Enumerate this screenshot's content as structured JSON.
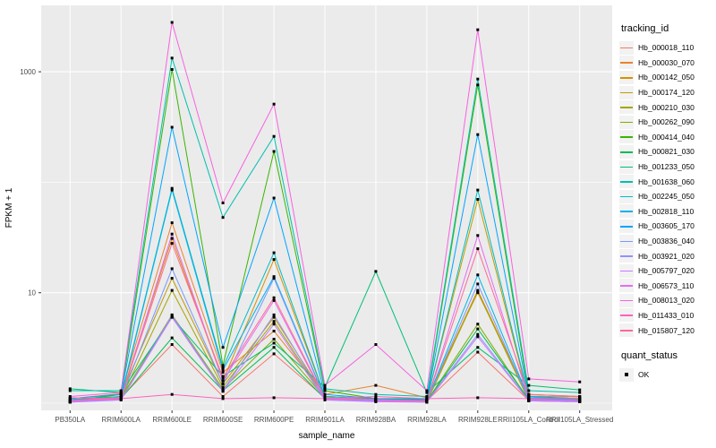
{
  "figure": {
    "x_axis_title": "sample_name",
    "y_axis_title": "FPKM + 1",
    "legends": {
      "tracking": {
        "title": "tracking_id"
      },
      "quant": {
        "title": "quant_status",
        "items": [
          {
            "label": "OK",
            "marker_icon": "black-square-point-icon"
          }
        ]
      }
    },
    "colors": {
      "panel_bg": "#EBEBEB",
      "grid_major": "#FFFFFF",
      "grid_minor": "#FFFFFF",
      "tick_label": "#4D4D4D",
      "axis_title": "#000000",
      "tick_mark": "#333333",
      "point": "#000000",
      "legend_key_bg": "#F2F2F2"
    }
  },
  "chart_data": {
    "type": "line",
    "title": "",
    "xlabel": "sample_name",
    "ylabel": "FPKM + 1",
    "y_scale": "log10",
    "ylim": [
      1,
      4000
    ],
    "y_major_ticks": [
      10,
      1000
    ],
    "y_tick_labels": [
      "10",
      "1000"
    ],
    "y_minor_gridlines": [
      1,
      100
    ],
    "grid": "white-on-gray",
    "legend_position": "right",
    "marker": "small-black-square",
    "categories": [
      "PB350LA",
      "RRIM600LA",
      "RRIM600LE",
      "RRIM600SE",
      "RRIM600PE",
      "RRIM901LA",
      "RRIM928BA",
      "RRIM928LA",
      "RRIM928LE",
      "RRII105LA_Control",
      "RRII105LA_Stressed"
    ],
    "series": [
      {
        "name": "Hb_000018_110",
        "color": "#F8766D",
        "values": [
          1.05,
          1.12,
          3.4,
          1.15,
          2.8,
          1.12,
          1.06,
          1.05,
          2.9,
          1.06,
          1.05
        ]
      },
      {
        "name": "Hb_000030_070",
        "color": "#EA8331",
        "values": [
          1.1,
          1.22,
          43,
          1.9,
          4.5,
          1.2,
          1.45,
          1.12,
          10.0,
          1.16,
          1.14
        ]
      },
      {
        "name": "Hb_000142_050",
        "color": "#D89000",
        "values": [
          1.06,
          1.15,
          31,
          1.6,
          20,
          1.15,
          1.1,
          1.06,
          10.5,
          1.1,
          1.08
        ]
      },
      {
        "name": "Hb_000174_120",
        "color": "#C09B00",
        "values": [
          1.05,
          1.2,
          13.5,
          1.5,
          6.0,
          1.15,
          1.1,
          1.08,
          70,
          1.1,
          1.05
        ]
      },
      {
        "name": "Hb_000210_030",
        "color": "#A3A500",
        "values": [
          1.02,
          1.1,
          10.5,
          1.4,
          5.5,
          1.1,
          1.05,
          1.02,
          10.2,
          1.05,
          1.03
        ]
      },
      {
        "name": "Hb_000262_090",
        "color": "#7CAE00",
        "values": [
          1.03,
          1.12,
          6.3,
          1.35,
          3.8,
          1.12,
          1.06,
          1.04,
          5.2,
          1.06,
          1.04
        ]
      },
      {
        "name": "Hb_000414_040",
        "color": "#39B600",
        "values": [
          1.05,
          1.2,
          1050,
          2.2,
          190,
          1.3,
          1.1,
          1.1,
          760,
          1.2,
          1.15
        ]
      },
      {
        "name": "Hb_000821_030",
        "color": "#00BC51",
        "values": [
          1.04,
          1.1,
          3.9,
          1.3,
          3.2,
          1.1,
          1.05,
          1.04,
          4.7,
          1.08,
          1.05
        ]
      },
      {
        "name": "Hb_001233_050",
        "color": "#00BF74",
        "values": [
          1.35,
          1.25,
          6.0,
          1.75,
          3.5,
          1.4,
          15.6,
          1.25,
          3.2,
          1.45,
          1.32
        ]
      },
      {
        "name": "Hb_001638_060",
        "color": "#00C0AF",
        "values": [
          1.3,
          1.3,
          1330,
          48,
          260,
          1.35,
          1.2,
          1.15,
          860,
          1.3,
          1.25
        ]
      },
      {
        "name": "Hb_002245_050",
        "color": "#00BCC2",
        "values": [
          1.08,
          1.15,
          88,
          2.1,
          23,
          1.15,
          1.1,
          1.06,
          85,
          1.12,
          1.1
        ]
      },
      {
        "name": "Hb_002818_110",
        "color": "#00B3E9",
        "values": [
          1.06,
          1.12,
          85,
          2.0,
          14,
          1.12,
          1.08,
          1.05,
          14.5,
          1.1,
          1.07
        ]
      },
      {
        "name": "Hb_003605_170",
        "color": "#00A5FF",
        "values": [
          1.1,
          1.2,
          315,
          3.2,
          72,
          1.2,
          1.1,
          1.08,
          270,
          1.15,
          1.1
        ]
      },
      {
        "name": "Hb_003836_040",
        "color": "#7997FF",
        "values": [
          1.05,
          1.1,
          16.5,
          1.5,
          13.5,
          1.1,
          1.05,
          1.05,
          12,
          1.08,
          1.06
        ]
      },
      {
        "name": "Hb_003921_020",
        "color": "#9590FF",
        "values": [
          1.03,
          1.08,
          6.2,
          1.3,
          6.3,
          1.08,
          1.04,
          1.03,
          4.2,
          1.06,
          1.04
        ]
      },
      {
        "name": "Hb_005797_020",
        "color": "#C77CFF",
        "values": [
          1.02,
          1.07,
          6.0,
          1.28,
          5.2,
          1.07,
          1.03,
          1.02,
          4.0,
          1.05,
          1.03
        ]
      },
      {
        "name": "Hb_006573_110",
        "color": "#E76BF3",
        "values": [
          1.05,
          1.1,
          34,
          1.6,
          8.5,
          1.1,
          1.06,
          1.04,
          33,
          1.08,
          1.05
        ]
      },
      {
        "name": "Hb_008013_020",
        "color": "#F763E0",
        "values": [
          1.15,
          1.25,
          2800,
          65,
          510,
          1.45,
          3.4,
          1.3,
          2400,
          1.66,
          1.56
        ]
      },
      {
        "name": "Hb_011433_010",
        "color": "#FF62BC",
        "values": [
          1.12,
          1.1,
          1.2,
          1.1,
          1.12,
          1.1,
          1.15,
          1.1,
          1.12,
          1.1,
          1.1
        ]
      },
      {
        "name": "Hb_015807_120",
        "color": "#FF6A98",
        "values": [
          1.06,
          1.12,
          28,
          1.7,
          9.0,
          1.12,
          1.08,
          1.05,
          25,
          1.2,
          1.15
        ]
      }
    ],
    "quant_status": {
      "label": "OK"
    }
  }
}
